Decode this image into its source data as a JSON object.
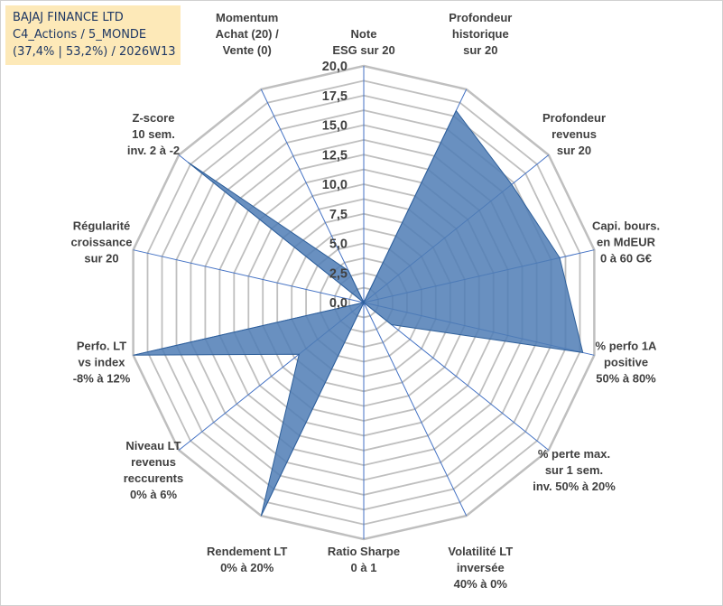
{
  "info": {
    "line1": "BAJAJ FINANCE LTD",
    "line2": "C4_Actions / 5_MONDE",
    "line3": "(37,4% | 53,2%) / 2026W13"
  },
  "colors": {
    "fill": "#4f7cb5",
    "stroke": "#2e5f9a",
    "grid": "#bfbfbf",
    "spoke": "#4472c4",
    "text": "#404040"
  },
  "chart_data": {
    "type": "radar",
    "title": "",
    "rmin": 0,
    "rmax": 20,
    "tick_step": 2.5,
    "tick_labels": [
      "0,0",
      "2,5",
      "5,0",
      "7,5",
      "10,0",
      "12,5",
      "15,0",
      "17,5",
      "20,0"
    ],
    "axes": [
      {
        "label": [
          "Note",
          "ESG sur 20"
        ],
        "value": 0
      },
      {
        "label": [
          "Profondeur",
          "historique",
          "sur 20"
        ],
        "value": 18
      },
      {
        "label": [
          "Profondeur",
          "revenus",
          "sur 20"
        ],
        "value": 16
      },
      {
        "label": [
          "Capi. bours.",
          "en MdEUR",
          "0 à 60 G€"
        ],
        "value": 17
      },
      {
        "label": [
          "% perfo 1A",
          "positive",
          "50% à 80%"
        ],
        "value": 19
      },
      {
        "label": [
          "% perte max.",
          "sur 1 sem.",
          "inv. 50% à 20%"
        ],
        "value": 3
      },
      {
        "label": [
          "Volatilité LT",
          "inversée",
          "40% à 0%"
        ],
        "value": 0
      },
      {
        "label": [
          "Ratio Sharpe",
          "0 à 1"
        ],
        "value": 0
      },
      {
        "label": [
          "Rendement LT",
          "0% à 20%"
        ],
        "value": 20
      },
      {
        "label": [
          "Niveau LT",
          "revenus",
          "reccurents",
          "0% à 6%"
        ],
        "value": 7
      },
      {
        "label": [
          "Perfo. LT",
          "vs index",
          "-8% à 12%"
        ],
        "value": 20
      },
      {
        "label": [
          "Régularité",
          "croissance",
          "sur 20"
        ],
        "value": 0
      },
      {
        "label": [
          "Z-score",
          "10 sem.",
          "inv. 2 à -2"
        ],
        "value": 19
      },
      {
        "label": [
          "Momentum",
          "Achat (20) /",
          "Vente (0)"
        ],
        "value": 3
      }
    ]
  }
}
